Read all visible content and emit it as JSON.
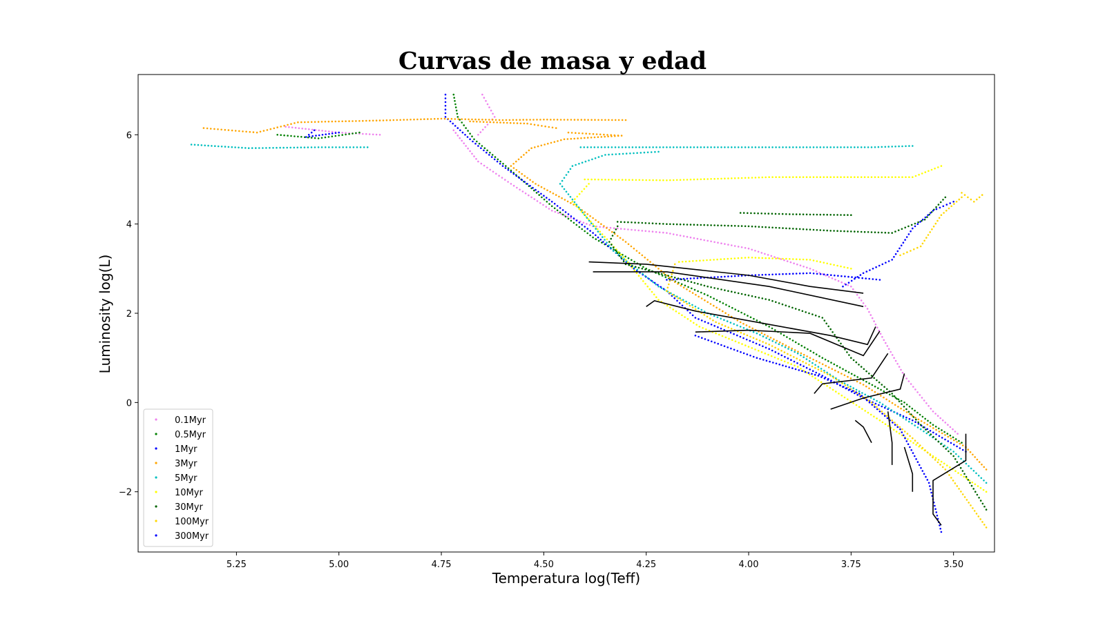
{
  "chart_data": {
    "type": "scatter",
    "title": "Curvas de masa y edad",
    "xlabel": "Temperatura log(Teff)",
    "ylabel": "Luminosity log(L)",
    "xlim": [
      5.49,
      3.4
    ],
    "ylim": [
      -3.35,
      7.35
    ],
    "x_reversed": true,
    "x_ticks": [
      {
        "value": 5.25,
        "label": "5.25"
      },
      {
        "value": 5.0,
        "label": "5.00"
      },
      {
        "value": 4.75,
        "label": "4.75"
      },
      {
        "value": 4.5,
        "label": "4.50"
      },
      {
        "value": 4.25,
        "label": "4.25"
      },
      {
        "value": 4.0,
        "label": "4.00"
      },
      {
        "value": 3.75,
        "label": "3.75"
      },
      {
        "value": 3.5,
        "label": "3.50"
      }
    ],
    "y_ticks": [
      {
        "value": 6,
        "label": "6"
      },
      {
        "value": 4,
        "label": "4"
      },
      {
        "value": 2,
        "label": "2"
      },
      {
        "value": 0,
        "label": "0"
      },
      {
        "value": -2,
        "label": "−2"
      }
    ],
    "grid": false,
    "legend_position": "lower-left",
    "series": [
      {
        "name": "0.1Myr",
        "color": "#ee82ee",
        "tracks": [
          [
            [
              4.72,
              6.1
            ],
            [
              4.66,
              5.4
            ],
            [
              4.58,
              4.9
            ],
            [
              4.48,
              4.3
            ],
            [
              4.38,
              3.95
            ],
            [
              4.2,
              3.8
            ],
            [
              4.0,
              3.45
            ],
            [
              3.85,
              3.0
            ],
            [
              3.75,
              2.6
            ],
            [
              3.71,
              2.1
            ],
            [
              3.67,
              1.4
            ],
            [
              3.62,
              0.6
            ],
            [
              3.55,
              -0.2
            ],
            [
              3.49,
              -0.7
            ]
          ],
          [
            [
              4.65,
              6.9
            ],
            [
              4.62,
              6.4
            ],
            [
              4.66,
              6.0
            ]
          ],
          [
            [
              5.13,
              6.18
            ],
            [
              5.0,
              6.05
            ],
            [
              4.9,
              6.0
            ]
          ]
        ]
      },
      {
        "name": "0.5Myr",
        "color": "#008000",
        "tracks": [
          [
            [
              4.72,
              6.9
            ],
            [
              4.71,
              6.4
            ],
            [
              4.67,
              5.9
            ],
            [
              4.58,
              5.2
            ],
            [
              4.48,
              4.4
            ],
            [
              4.38,
              3.7
            ],
            [
              4.25,
              3.0
            ],
            [
              4.1,
              2.4
            ],
            [
              3.95,
              1.7
            ],
            [
              3.82,
              1.0
            ],
            [
              3.72,
              0.5
            ],
            [
              3.62,
              0.0
            ],
            [
              3.55,
              -0.5
            ],
            [
              3.48,
              -0.9
            ]
          ],
          [
            [
              5.15,
              6.0
            ],
            [
              5.05,
              5.92
            ],
            [
              4.95,
              6.05
            ]
          ]
        ]
      },
      {
        "name": "1Myr",
        "color": "#0000ff",
        "tracks": [
          [
            [
              4.74,
              6.9
            ],
            [
              4.74,
              6.4
            ],
            [
              4.68,
              5.9
            ],
            [
              4.6,
              5.3
            ],
            [
              4.48,
              4.5
            ],
            [
              4.38,
              3.8
            ],
            [
              4.28,
              3.0
            ],
            [
              4.2,
              2.5
            ],
            [
              4.13,
              1.9
            ],
            [
              3.95,
              1.2
            ],
            [
              3.82,
              0.6
            ],
            [
              3.72,
              0.1
            ],
            [
              3.6,
              -0.4
            ],
            [
              3.47,
              -1.1
            ]
          ],
          [
            [
              5.06,
              6.1
            ],
            [
              5.08,
              5.95
            ],
            [
              5.0,
              6.05
            ]
          ]
        ]
      },
      {
        "name": "3Myr",
        "color": "#ffa500",
        "tracks": [
          [
            [
              5.33,
              6.15
            ],
            [
              5.2,
              6.05
            ],
            [
              5.1,
              6.28
            ],
            [
              4.9,
              6.32
            ],
            [
              4.75,
              6.36
            ],
            [
              4.6,
              6.33
            ],
            [
              4.5,
              6.34
            ],
            [
              4.3,
              6.33
            ]
          ],
          [
            [
              4.47,
              6.15
            ],
            [
              4.54,
              6.25
            ],
            [
              4.68,
              6.3
            ]
          ],
          [
            [
              4.44,
              6.05
            ],
            [
              4.31,
              5.98
            ],
            [
              4.45,
              5.9
            ],
            [
              4.53,
              5.7
            ],
            [
              4.58,
              5.3
            ],
            [
              4.52,
              4.9
            ],
            [
              4.42,
              4.4
            ],
            [
              4.3,
              3.6
            ],
            [
              4.18,
              2.7
            ],
            [
              4.02,
              1.8
            ],
            [
              3.85,
              1.0
            ],
            [
              3.72,
              0.4
            ],
            [
              3.6,
              -0.3
            ],
            [
              3.47,
              -1.0
            ],
            [
              3.42,
              -1.5
            ]
          ]
        ]
      },
      {
        "name": "5Myr",
        "color": "#00bfbf",
        "tracks": [
          [
            [
              5.36,
              5.78
            ],
            [
              5.22,
              5.7
            ],
            [
              5.05,
              5.72
            ],
            [
              4.93,
              5.72
            ]
          ],
          [
            [
              4.41,
              5.72
            ],
            [
              4.3,
              5.72
            ],
            [
              4.1,
              5.72
            ],
            [
              3.9,
              5.72
            ],
            [
              3.7,
              5.72
            ],
            [
              3.6,
              5.75
            ]
          ],
          [
            [
              4.22,
              5.62
            ],
            [
              4.35,
              5.55
            ],
            [
              4.43,
              5.3
            ],
            [
              4.46,
              4.9
            ],
            [
              4.4,
              4.2
            ],
            [
              4.33,
              3.4
            ],
            [
              4.22,
              2.6
            ],
            [
              4.1,
              2.0
            ],
            [
              3.98,
              1.55
            ],
            [
              3.88,
              1.1
            ],
            [
              3.78,
              0.5
            ],
            [
              3.68,
              0.0
            ],
            [
              3.58,
              -0.6
            ],
            [
              3.5,
              -1.1
            ],
            [
              3.42,
              -1.8
            ]
          ]
        ]
      },
      {
        "name": "10Myr",
        "color": "#ffff00",
        "tracks": [
          [
            [
              4.4,
              5.0
            ],
            [
              4.2,
              4.98
            ],
            [
              3.95,
              5.05
            ],
            [
              3.75,
              5.05
            ],
            [
              3.6,
              5.05
            ],
            [
              3.53,
              5.3
            ]
          ],
          [
            [
              4.39,
              4.9
            ],
            [
              4.43,
              4.5
            ],
            [
              4.38,
              4.0
            ],
            [
              4.3,
              3.2
            ],
            [
              4.22,
              2.3
            ],
            [
              4.12,
              1.7
            ],
            [
              4.0,
              1.25
            ],
            [
              3.88,
              0.8
            ],
            [
              3.78,
              0.2
            ],
            [
              3.68,
              -0.4
            ],
            [
              3.55,
              -1.2
            ],
            [
              3.42,
              -2.0
            ]
          ],
          [
            [
              4.17,
              3.15
            ],
            [
              4.0,
              3.25
            ],
            [
              3.85,
              3.2
            ],
            [
              3.75,
              3.0
            ]
          ]
        ]
      },
      {
        "name": "30Myr",
        "color": "#006400",
        "tracks": [
          [
            [
              4.32,
              4.05
            ],
            [
              4.2,
              4.0
            ],
            [
              4.0,
              3.95
            ],
            [
              3.8,
              3.85
            ],
            [
              3.65,
              3.8
            ],
            [
              3.57,
              4.1
            ],
            [
              3.52,
              4.6
            ]
          ],
          [
            [
              4.02,
              4.25
            ],
            [
              3.9,
              4.22
            ],
            [
              3.75,
              4.2
            ]
          ],
          [
            [
              4.32,
              3.95
            ],
            [
              4.34,
              3.6
            ],
            [
              4.3,
              3.1
            ],
            [
              4.1,
              2.6
            ],
            [
              3.95,
              2.3
            ],
            [
              3.82,
              1.9
            ],
            [
              3.75,
              1.0
            ],
            [
              3.65,
              0.2
            ],
            [
              3.58,
              -0.5
            ],
            [
              3.5,
              -1.2
            ],
            [
              3.42,
              -2.4
            ]
          ]
        ]
      },
      {
        "name": "100Myr",
        "color": "#ffd700",
        "tracks": [
          [
            [
              3.48,
              4.7
            ],
            [
              3.45,
              4.5
            ],
            [
              3.43,
              4.65
            ]
          ],
          [
            [
              3.63,
              3.3
            ],
            [
              3.58,
              3.5
            ],
            [
              3.53,
              4.2
            ],
            [
              3.48,
              4.6
            ]
          ],
          [
            [
              4.18,
              3.1
            ],
            [
              4.2,
              2.5
            ],
            [
              4.08,
              1.8
            ],
            [
              3.95,
              1.3
            ],
            [
              3.8,
              0.6
            ],
            [
              3.7,
              0.0
            ],
            [
              3.6,
              -0.8
            ],
            [
              3.52,
              -1.5
            ],
            [
              3.42,
              -2.8
            ]
          ]
        ]
      },
      {
        "name": "300Myr",
        "color": "#0000ff",
        "tracks": [
          [
            [
              3.77,
              2.6
            ],
            [
              3.72,
              2.9
            ],
            [
              3.65,
              3.2
            ],
            [
              3.6,
              3.9
            ],
            [
              3.55,
              4.3
            ],
            [
              3.5,
              4.5
            ]
          ],
          [
            [
              3.68,
              2.75
            ],
            [
              3.85,
              2.9
            ],
            [
              4.0,
              2.85
            ],
            [
              4.2,
              2.75
            ]
          ],
          [
            [
              4.13,
              1.5
            ],
            [
              3.98,
              1.0
            ],
            [
              3.83,
              0.6
            ],
            [
              3.73,
              0.2
            ],
            [
              3.63,
              -0.6
            ],
            [
              3.56,
              -1.8
            ],
            [
              3.53,
              -2.9
            ]
          ]
        ]
      }
    ],
    "isochrones": {
      "color": "#000000",
      "lines": [
        [
          [
            4.39,
            3.15
          ],
          [
            4.25,
            3.1
          ],
          [
            4.0,
            2.85
          ],
          [
            3.85,
            2.6
          ],
          [
            3.72,
            2.45
          ]
        ],
        [
          [
            4.38,
            2.93
          ],
          [
            4.2,
            2.93
          ],
          [
            3.95,
            2.6
          ],
          [
            3.72,
            2.15
          ]
        ],
        [
          [
            4.25,
            2.15
          ],
          [
            4.23,
            2.28
          ],
          [
            4.13,
            2.05
          ],
          [
            3.95,
            1.75
          ],
          [
            3.8,
            1.5
          ],
          [
            3.71,
            1.3
          ],
          [
            3.69,
            1.7
          ]
        ],
        [
          [
            4.13,
            1.58
          ],
          [
            4.0,
            1.62
          ],
          [
            3.85,
            1.55
          ],
          [
            3.72,
            1.05
          ],
          [
            3.68,
            1.6
          ]
        ],
        [
          [
            3.84,
            0.2
          ],
          [
            3.82,
            0.42
          ],
          [
            3.7,
            0.55
          ],
          [
            3.66,
            1.1
          ]
        ],
        [
          [
            3.8,
            -0.15
          ],
          [
            3.72,
            0.1
          ],
          [
            3.63,
            0.3
          ],
          [
            3.62,
            0.65
          ]
        ],
        [
          [
            3.74,
            -0.4
          ],
          [
            3.72,
            -0.55
          ],
          [
            3.7,
            -0.9
          ]
        ],
        [
          [
            3.66,
            -0.2
          ],
          [
            3.65,
            -0.9
          ],
          [
            3.65,
            -1.4
          ]
        ],
        [
          [
            3.62,
            -1.0
          ],
          [
            3.6,
            -1.6
          ],
          [
            3.6,
            -2.0
          ]
        ],
        [
          [
            3.47,
            -0.7
          ],
          [
            3.47,
            -1.3
          ],
          [
            3.55,
            -1.75
          ],
          [
            3.55,
            -2.5
          ],
          [
            3.53,
            -2.75
          ]
        ]
      ]
    }
  }
}
